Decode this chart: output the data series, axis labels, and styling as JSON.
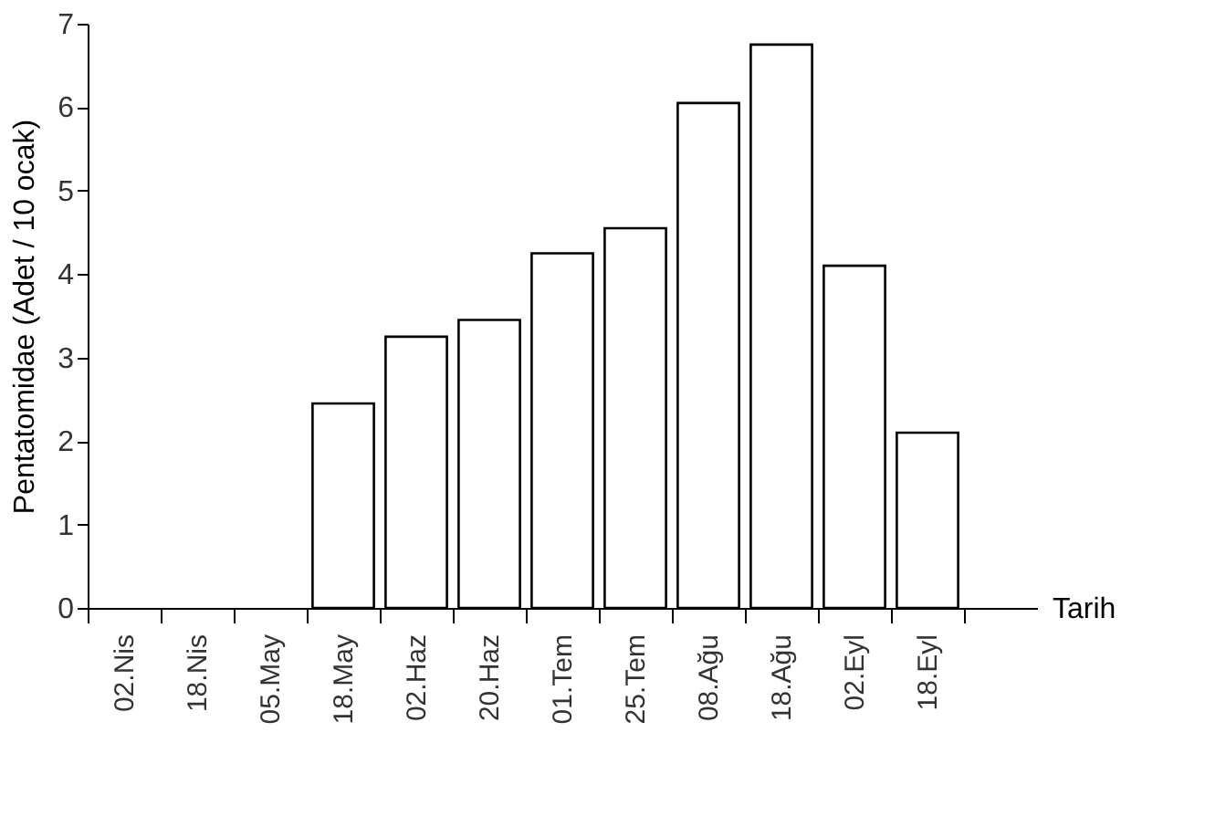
{
  "chart_data": {
    "type": "bar",
    "xlabel": "Tarih",
    "ylabel": "Pentatomidae (Adet / 10 ocak)",
    "categories": [
      "02.Nis",
      "18.Nis",
      "05.May",
      "18.May",
      "02.Haz",
      "20.Haz",
      "01.Tem",
      "25.Tem",
      "08.Ağu",
      "18.Ağu",
      "02.Eyl",
      "18.Eyl",
      null
    ],
    "values": [
      0,
      0,
      0,
      2.45,
      3.25,
      3.45,
      4.25,
      4.55,
      6.05,
      6.75,
      4.1,
      2.1,
      null
    ],
    "color": "#ffffff",
    "ylim": [
      0,
      7
    ],
    "yticks": [
      0,
      1,
      2,
      3,
      4,
      5,
      6,
      7
    ],
    "grid": false
  }
}
